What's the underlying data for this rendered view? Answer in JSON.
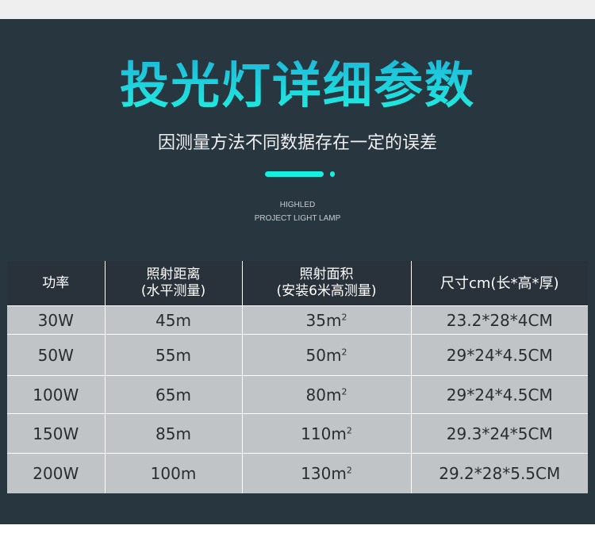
{
  "header": {
    "title": "投光灯详细参数",
    "subtitle": "因测量方法不同数据存在一定的误差",
    "en_line1": "HIGHLED",
    "en_line2": "PROJECT LIGHT LAMP",
    "accent_color": "#17efe0"
  },
  "table": {
    "headers": [
      {
        "line1": "功率",
        "line2": ""
      },
      {
        "line1": "照射距离",
        "line2": "(水平测量)"
      },
      {
        "line1": "照射面积",
        "line2": "(安装6米高测量)"
      },
      {
        "line1": "尺寸cm(长*高*厚)",
        "line2": ""
      }
    ],
    "rows": [
      {
        "power": "30W",
        "distance": "45m",
        "area": "35m",
        "area_sup": "2",
        "size": "23.2*28*4CM"
      },
      {
        "power": "50W",
        "distance": "55m",
        "area": "50m",
        "area_sup": "2",
        "size": "29*24*4.5CM"
      },
      {
        "power": "100W",
        "distance": "65m",
        "area": "80m",
        "area_sup": "2",
        "size": "29*24*4.5CM"
      },
      {
        "power": "150W",
        "distance": "85m",
        "area": "110m",
        "area_sup": "2",
        "size": "29.3*24*5CM"
      },
      {
        "power": "200W",
        "distance": "100m",
        "area": "130m",
        "area_sup": "2",
        "size": "29.2*28*5.5CM"
      }
    ]
  }
}
